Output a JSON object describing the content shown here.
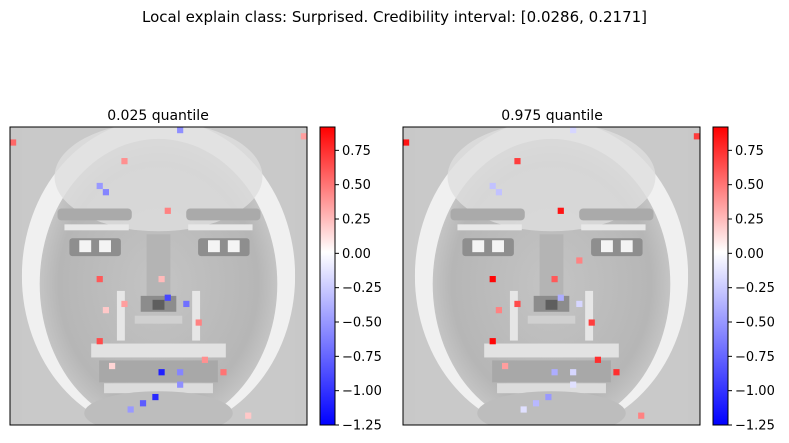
{
  "figure": {
    "suptitle": "Local explain class: Surprised. Credibility interval: [0.0286, 0.2171]"
  },
  "colors": {
    "cmap_low": "#0000ff",
    "cmap_mid": "#ffffff",
    "cmap_high": "#ff0000",
    "background_face_gray": "#c8c8c8"
  },
  "chart_data": [
    {
      "type": "heatmap",
      "title": "0.025 quantile",
      "description_of_base": "grayscale face image (approx. 48x48 pixels) overlaid with sparse colored attribution pixels",
      "colorbar": {
        "vmin": -1.25,
        "vmax": 0.92,
        "ticks": [
          "0.75",
          "0.50",
          "0.25",
          "0.00",
          "−0.25",
          "−0.50",
          "−0.75",
          "−1.00",
          "−1.25"
        ],
        "tick_values": [
          0.75,
          0.5,
          0.25,
          0.0,
          -0.25,
          -0.5,
          -0.75,
          -1.0,
          -1.25
        ]
      },
      "grid_size": 48,
      "highlighted_pixels": [
        {
          "col": 0,
          "row": 2,
          "value": 0.55
        },
        {
          "col": 47,
          "row": 1,
          "value": 0.35
        },
        {
          "col": 27,
          "row": 0,
          "value": -0.55
        },
        {
          "col": 18,
          "row": 5,
          "value": 0.4
        },
        {
          "col": 14,
          "row": 9,
          "value": -0.5
        },
        {
          "col": 15,
          "row": 10,
          "value": -0.6
        },
        {
          "col": 25,
          "row": 13,
          "value": 0.45
        },
        {
          "col": 14,
          "row": 24,
          "value": 0.6
        },
        {
          "col": 24,
          "row": 24,
          "value": 0.25
        },
        {
          "col": 25,
          "row": 27,
          "value": -0.9
        },
        {
          "col": 28,
          "row": 28,
          "value": -0.7
        },
        {
          "col": 18,
          "row": 28,
          "value": 0.35
        },
        {
          "col": 15,
          "row": 29,
          "value": 0.2
        },
        {
          "col": 30,
          "row": 31,
          "value": 0.45
        },
        {
          "col": 14,
          "row": 34,
          "value": 0.65
        },
        {
          "col": 31,
          "row": 37,
          "value": 0.4
        },
        {
          "col": 34,
          "row": 39,
          "value": 0.5
        },
        {
          "col": 24,
          "row": 39,
          "value": -1.1
        },
        {
          "col": 27,
          "row": 39,
          "value": -0.6
        },
        {
          "col": 27,
          "row": 41,
          "value": -0.55
        },
        {
          "col": 23,
          "row": 43,
          "value": -1.05
        },
        {
          "col": 21,
          "row": 44,
          "value": -0.8
        },
        {
          "col": 19,
          "row": 45,
          "value": -0.5
        },
        {
          "col": 16,
          "row": 38,
          "value": 0.15
        },
        {
          "col": 38,
          "row": 46,
          "value": 0.2
        }
      ]
    },
    {
      "type": "heatmap",
      "title": "0.975 quantile",
      "description_of_base": "grayscale face image (approx. 48x48 pixels) overlaid with sparse colored attribution pixels",
      "colorbar": {
        "vmin": -1.25,
        "vmax": 0.92,
        "ticks": [
          "0.75",
          "0.50",
          "0.25",
          "0.00",
          "−0.25",
          "−0.50",
          "−0.75",
          "−1.00",
          "−1.25"
        ],
        "tick_values": [
          0.75,
          0.5,
          0.25,
          0.0,
          -0.25,
          -0.5,
          -0.75,
          -1.0,
          -1.25
        ]
      },
      "grid_size": 48,
      "highlighted_pixels": [
        {
          "col": 0,
          "row": 2,
          "value": 0.85
        },
        {
          "col": 47,
          "row": 1,
          "value": 0.7
        },
        {
          "col": 27,
          "row": 0,
          "value": -0.2
        },
        {
          "col": 18,
          "row": 5,
          "value": 0.7
        },
        {
          "col": 14,
          "row": 9,
          "value": -0.3
        },
        {
          "col": 15,
          "row": 10,
          "value": -0.3
        },
        {
          "col": 25,
          "row": 13,
          "value": 0.85
        },
        {
          "col": 14,
          "row": 24,
          "value": 0.9
        },
        {
          "col": 24,
          "row": 24,
          "value": 0.6
        },
        {
          "col": 28,
          "row": 21,
          "value": 0.45
        },
        {
          "col": 25,
          "row": 27,
          "value": -0.4
        },
        {
          "col": 28,
          "row": 28,
          "value": -0.2
        },
        {
          "col": 18,
          "row": 28,
          "value": 0.65
        },
        {
          "col": 15,
          "row": 29,
          "value": 0.45
        },
        {
          "col": 30,
          "row": 31,
          "value": 0.7
        },
        {
          "col": 14,
          "row": 34,
          "value": 0.9
        },
        {
          "col": 31,
          "row": 37,
          "value": 0.75
        },
        {
          "col": 34,
          "row": 39,
          "value": 0.75
        },
        {
          "col": 24,
          "row": 39,
          "value": -0.4
        },
        {
          "col": 27,
          "row": 39,
          "value": -0.2
        },
        {
          "col": 27,
          "row": 41,
          "value": -0.15
        },
        {
          "col": 23,
          "row": 43,
          "value": -0.5
        },
        {
          "col": 21,
          "row": 44,
          "value": -0.35
        },
        {
          "col": 19,
          "row": 45,
          "value": -0.15
        },
        {
          "col": 16,
          "row": 38,
          "value": 0.35
        },
        {
          "col": 38,
          "row": 46,
          "value": 0.45
        }
      ]
    }
  ]
}
